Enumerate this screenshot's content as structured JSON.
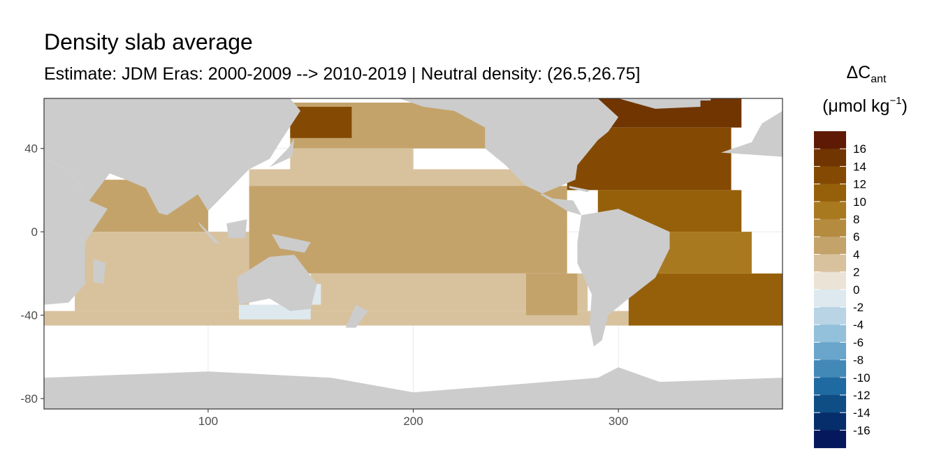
{
  "chart_data": {
    "type": "heatmap",
    "title": "Density slab average",
    "subtitle": "Estimate: JDM Eras: 2000-2009 --> 2010-2019 | Neutral density: (26.5,26.75]",
    "xlabel": "",
    "ylabel": "",
    "xlim": [
      20,
      380
    ],
    "ylim": [
      -85,
      64
    ],
    "x_ticks": [
      100,
      200,
      300
    ],
    "y_ticks": [
      40,
      0,
      -40,
      -80
    ],
    "x_tick_labels": [
      "100",
      "200",
      "300"
    ],
    "y_tick_labels": [
      "40",
      "0",
      "-40",
      "-80"
    ],
    "grid": true,
    "legend": {
      "title_main": "ΔC",
      "title_sub": "ant",
      "title_units": "(μmol kg",
      "title_sup": "−1",
      "title_close": ")",
      "placement": "right",
      "breaks": [
        16,
        14,
        12,
        10,
        8,
        6,
        4,
        2,
        0,
        -2,
        -4,
        -6,
        -8,
        -10,
        -12,
        -14,
        -16
      ],
      "labels": [
        "16",
        "14",
        "12",
        "10",
        "8",
        "6",
        "4",
        "2",
        "0",
        "-2",
        "-4",
        "-6",
        "-8",
        "-10",
        "-12",
        "-14",
        "-16"
      ],
      "colors": [
        "#5e1a04",
        "#713502",
        "#844a03",
        "#96600a",
        "#a8791f",
        "#b48b3f",
        "#c4a36b",
        "#d8c29e",
        "#ebe3d6",
        "#dde9ee",
        "#b8d4e5",
        "#93c0db",
        "#6aa6cb",
        "#4289b8",
        "#1f6aa0",
        "#0f4d85",
        "#062e6b",
        "#04185b"
      ]
    },
    "regions": [
      {
        "name": "southern-ocean-band",
        "value": 3,
        "polygon": [
          [
            20,
            -38
          ],
          [
            380,
            -38
          ],
          [
            380,
            -45
          ],
          [
            20,
            -45
          ]
        ]
      },
      {
        "name": "north-pacific-subpolar",
        "value": 4,
        "polygon": [
          [
            140,
            62
          ],
          [
            240,
            62
          ],
          [
            240,
            40
          ],
          [
            140,
            40
          ]
        ]
      },
      {
        "name": "kuroshio-extension",
        "value": 2,
        "polygon": [
          [
            140,
            40
          ],
          [
            200,
            40
          ],
          [
            200,
            30
          ],
          [
            140,
            30
          ]
        ]
      },
      {
        "name": "west-pacific-subtropical",
        "value": 2,
        "polygon": [
          [
            120,
            30
          ],
          [
            200,
            30
          ],
          [
            200,
            22
          ],
          [
            120,
            22
          ]
        ]
      },
      {
        "name": "east-pacific-north",
        "value": 2,
        "polygon": [
          [
            200,
            30
          ],
          [
            260,
            30
          ],
          [
            260,
            20
          ],
          [
            200,
            20
          ]
        ]
      },
      {
        "name": "pacific-equatorial",
        "value": 4,
        "polygon": [
          [
            120,
            22
          ],
          [
            275,
            22
          ],
          [
            275,
            -20
          ],
          [
            120,
            -20
          ]
        ]
      },
      {
        "name": "south-pacific",
        "value": 3,
        "polygon": [
          [
            150,
            -20
          ],
          [
            285,
            -20
          ],
          [
            285,
            -38
          ],
          [
            150,
            -38
          ]
        ]
      },
      {
        "name": "peru-upwelling",
        "value": 4,
        "polygon": [
          [
            255,
            -20
          ],
          [
            280,
            -20
          ],
          [
            280,
            -40
          ],
          [
            255,
            -40
          ]
        ]
      },
      {
        "name": "indian-north",
        "value": 5,
        "polygon": [
          [
            40,
            25
          ],
          [
            100,
            25
          ],
          [
            100,
            0
          ],
          [
            40,
            0
          ]
        ]
      },
      {
        "name": "indian-south",
        "value": 3,
        "polygon": [
          [
            35,
            0
          ],
          [
            120,
            0
          ],
          [
            120,
            -38
          ],
          [
            35,
            -38
          ]
        ]
      },
      {
        "name": "australian-bight-negative",
        "value": -2,
        "polygon": [
          [
            115,
            -35
          ],
          [
            150,
            -35
          ],
          [
            150,
            -42
          ],
          [
            115,
            -42
          ]
        ]
      },
      {
        "name": "tasman-negative",
        "value": -1,
        "polygon": [
          [
            140,
            -25
          ],
          [
            155,
            -25
          ],
          [
            155,
            -35
          ],
          [
            140,
            -35
          ]
        ]
      },
      {
        "name": "atlantic-subpolar",
        "value": 14,
        "polygon": [
          [
            290,
            64
          ],
          [
            360,
            64
          ],
          [
            360,
            50
          ],
          [
            290,
            50
          ]
        ]
      },
      {
        "name": "atlantic-north",
        "value": 12,
        "polygon": [
          [
            275,
            50
          ],
          [
            355,
            50
          ],
          [
            355,
            20
          ],
          [
            275,
            20
          ]
        ]
      },
      {
        "name": "atlantic-subtropical",
        "value": 10,
        "polygon": [
          [
            290,
            20
          ],
          [
            360,
            20
          ],
          [
            360,
            0
          ],
          [
            290,
            0
          ]
        ]
      },
      {
        "name": "atlantic-equatorial",
        "value": 8,
        "polygon": [
          [
            310,
            0
          ],
          [
            365,
            0
          ],
          [
            365,
            -20
          ],
          [
            310,
            -20
          ]
        ]
      },
      {
        "name": "atlantic-south",
        "value": 11,
        "polygon": [
          [
            305,
            -20
          ],
          [
            380,
            -20
          ],
          [
            380,
            -45
          ],
          [
            305,
            -45
          ]
        ]
      },
      {
        "name": "okhotsk-sea",
        "value": 13,
        "polygon": [
          [
            140,
            60
          ],
          [
            170,
            60
          ],
          [
            170,
            45
          ],
          [
            140,
            45
          ]
        ]
      }
    ],
    "land_color": "#cccccc",
    "land": [
      {
        "name": "eurasia",
        "polygon": [
          [
            20,
            64
          ],
          [
            140,
            64
          ],
          [
            145,
            58
          ],
          [
            135,
            43
          ],
          [
            130,
            35
          ],
          [
            120,
            30
          ],
          [
            108,
            18
          ],
          [
            100,
            10
          ],
          [
            95,
            18
          ],
          [
            80,
            8
          ],
          [
            72,
            20
          ],
          [
            60,
            25
          ],
          [
            52,
            28
          ],
          [
            42,
            15
          ],
          [
            32,
            30
          ],
          [
            20,
            35
          ]
        ]
      },
      {
        "name": "africa",
        "polygon": [
          [
            20,
            35
          ],
          [
            32,
            30
          ],
          [
            42,
            15
          ],
          [
            51,
            11
          ],
          [
            40,
            -5
          ],
          [
            40,
            -25
          ],
          [
            32,
            -34
          ],
          [
            20,
            -35
          ]
        ]
      },
      {
        "name": "madagascar",
        "polygon": [
          [
            44,
            -13
          ],
          [
            50,
            -15
          ],
          [
            49,
            -25
          ],
          [
            44,
            -24
          ]
        ]
      },
      {
        "name": "india",
        "polygon": [
          [
            68,
            24
          ],
          [
            88,
            22
          ],
          [
            80,
            8
          ],
          [
            76,
            9
          ]
        ]
      },
      {
        "name": "australia",
        "polygon": [
          [
            114,
            -22
          ],
          [
            130,
            -12
          ],
          [
            142,
            -11
          ],
          [
            153,
            -25
          ],
          [
            150,
            -37
          ],
          [
            140,
            -38
          ],
          [
            130,
            -32
          ],
          [
            115,
            -35
          ]
        ]
      },
      {
        "name": "new-guinea",
        "polygon": [
          [
            131,
            -1
          ],
          [
            150,
            -5
          ],
          [
            147,
            -10
          ],
          [
            135,
            -8
          ]
        ]
      },
      {
        "name": "borneo",
        "polygon": [
          [
            109,
            4
          ],
          [
            119,
            6
          ],
          [
            118,
            -3
          ],
          [
            110,
            -3
          ]
        ]
      },
      {
        "name": "sumatra",
        "polygon": [
          [
            95,
            5
          ],
          [
            106,
            -6
          ],
          [
            103,
            -5
          ],
          [
            96,
            3
          ]
        ]
      },
      {
        "name": "japan",
        "polygon": [
          [
            130,
            31
          ],
          [
            141,
            36
          ],
          [
            142,
            45
          ],
          [
            139,
            40
          ],
          [
            132,
            33
          ]
        ]
      },
      {
        "name": "north-america",
        "polygon": [
          [
            193,
            64
          ],
          [
            260,
            64
          ],
          [
            290,
            64
          ],
          [
            300,
            55
          ],
          [
            295,
            48
          ],
          [
            290,
            44
          ],
          [
            280,
            32
          ],
          [
            279,
            25
          ],
          [
            262,
            18
          ],
          [
            275,
            10
          ],
          [
            282,
            8
          ],
          [
            278,
            15
          ],
          [
            268,
            16
          ],
          [
            255,
            22
          ],
          [
            245,
            32
          ],
          [
            235,
            40
          ],
          [
            235,
            50
          ],
          [
            220,
            58
          ],
          [
            205,
            60
          ]
        ]
      },
      {
        "name": "greenland",
        "polygon": [
          [
            300,
            64
          ],
          [
            340,
            64
          ],
          [
            340,
            60
          ],
          [
            318,
            59
          ]
        ]
      },
      {
        "name": "south-america",
        "polygon": [
          [
            282,
            8
          ],
          [
            300,
            11
          ],
          [
            325,
            0
          ],
          [
            325,
            -8
          ],
          [
            318,
            -22
          ],
          [
            305,
            -32
          ],
          [
            295,
            -40
          ],
          [
            292,
            -52
          ],
          [
            288,
            -55
          ],
          [
            286,
            -45
          ],
          [
            287,
            -30
          ],
          [
            280,
            -15
          ],
          [
            280,
            -5
          ]
        ]
      },
      {
        "name": "cuba",
        "polygon": [
          [
            276,
            22
          ],
          [
            286,
            20
          ],
          [
            285,
            19
          ],
          [
            276,
            21
          ]
        ]
      },
      {
        "name": "new-zealand",
        "polygon": [
          [
            172,
            -35
          ],
          [
            178,
            -38
          ],
          [
            172,
            -46
          ],
          [
            167,
            -46
          ]
        ]
      },
      {
        "name": "europe-west",
        "polygon": [
          [
            350,
            38
          ],
          [
            365,
            43
          ],
          [
            370,
            52
          ],
          [
            380,
            58
          ],
          [
            380,
            36
          ]
        ]
      },
      {
        "name": "iceland",
        "polygon": [
          [
            337,
            64
          ],
          [
            345,
            64
          ],
          [
            345,
            63
          ],
          [
            337,
            63
          ]
        ]
      },
      {
        "name": "antarctica",
        "polygon": [
          [
            20,
            -70
          ],
          [
            100,
            -67
          ],
          [
            160,
            -70
          ],
          [
            200,
            -77
          ],
          [
            240,
            -74
          ],
          [
            290,
            -70
          ],
          [
            300,
            -65
          ],
          [
            320,
            -72
          ],
          [
            380,
            -70
          ],
          [
            380,
            -85
          ],
          [
            20,
            -85
          ]
        ]
      }
    ]
  }
}
